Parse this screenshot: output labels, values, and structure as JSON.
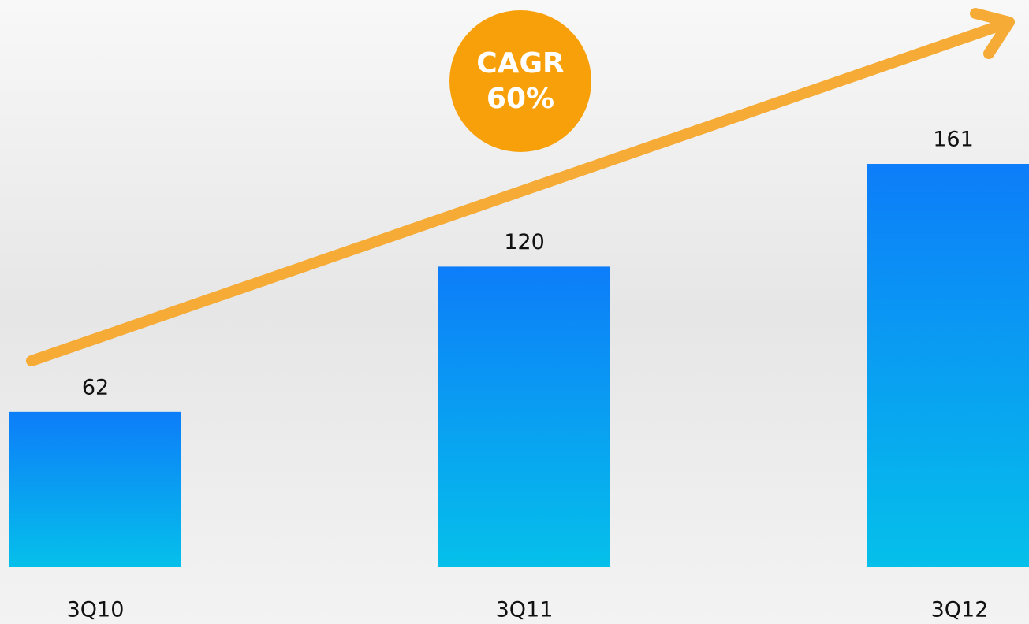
{
  "chart_data": {
    "type": "bar",
    "categories": [
      "3Q10",
      "3Q11",
      "3Q12"
    ],
    "values": [
      62,
      120,
      161
    ],
    "color": [
      "#0d7df9",
      "#05c0ea"
    ],
    "annotation": [
      "CAGR",
      "60%"
    ]
  }
}
